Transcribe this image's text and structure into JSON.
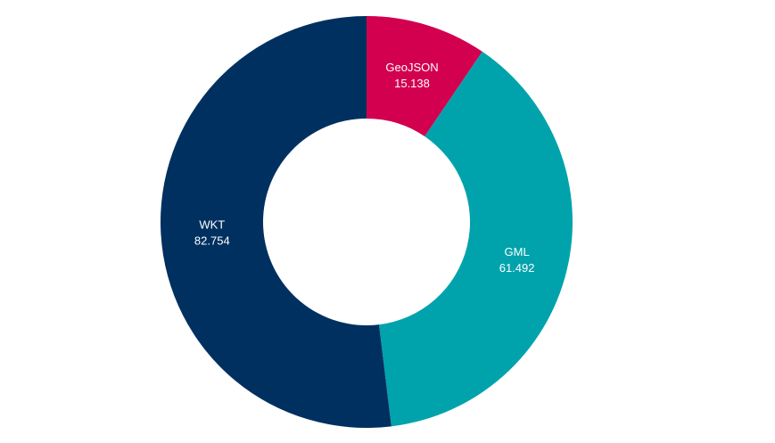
{
  "chart_data": {
    "type": "pie",
    "title": "",
    "donut": true,
    "legend": "none",
    "slices": [
      {
        "label": "GeoJSON",
        "value": 15.138,
        "display_value": "15.138",
        "color": "#d2004f"
      },
      {
        "label": "GML",
        "value": 61.492,
        "display_value": "61.492",
        "color": "#00a3ac"
      },
      {
        "label": "WKT",
        "value": 82.754,
        "display_value": "82.754",
        "color": "#003060"
      }
    ]
  }
}
